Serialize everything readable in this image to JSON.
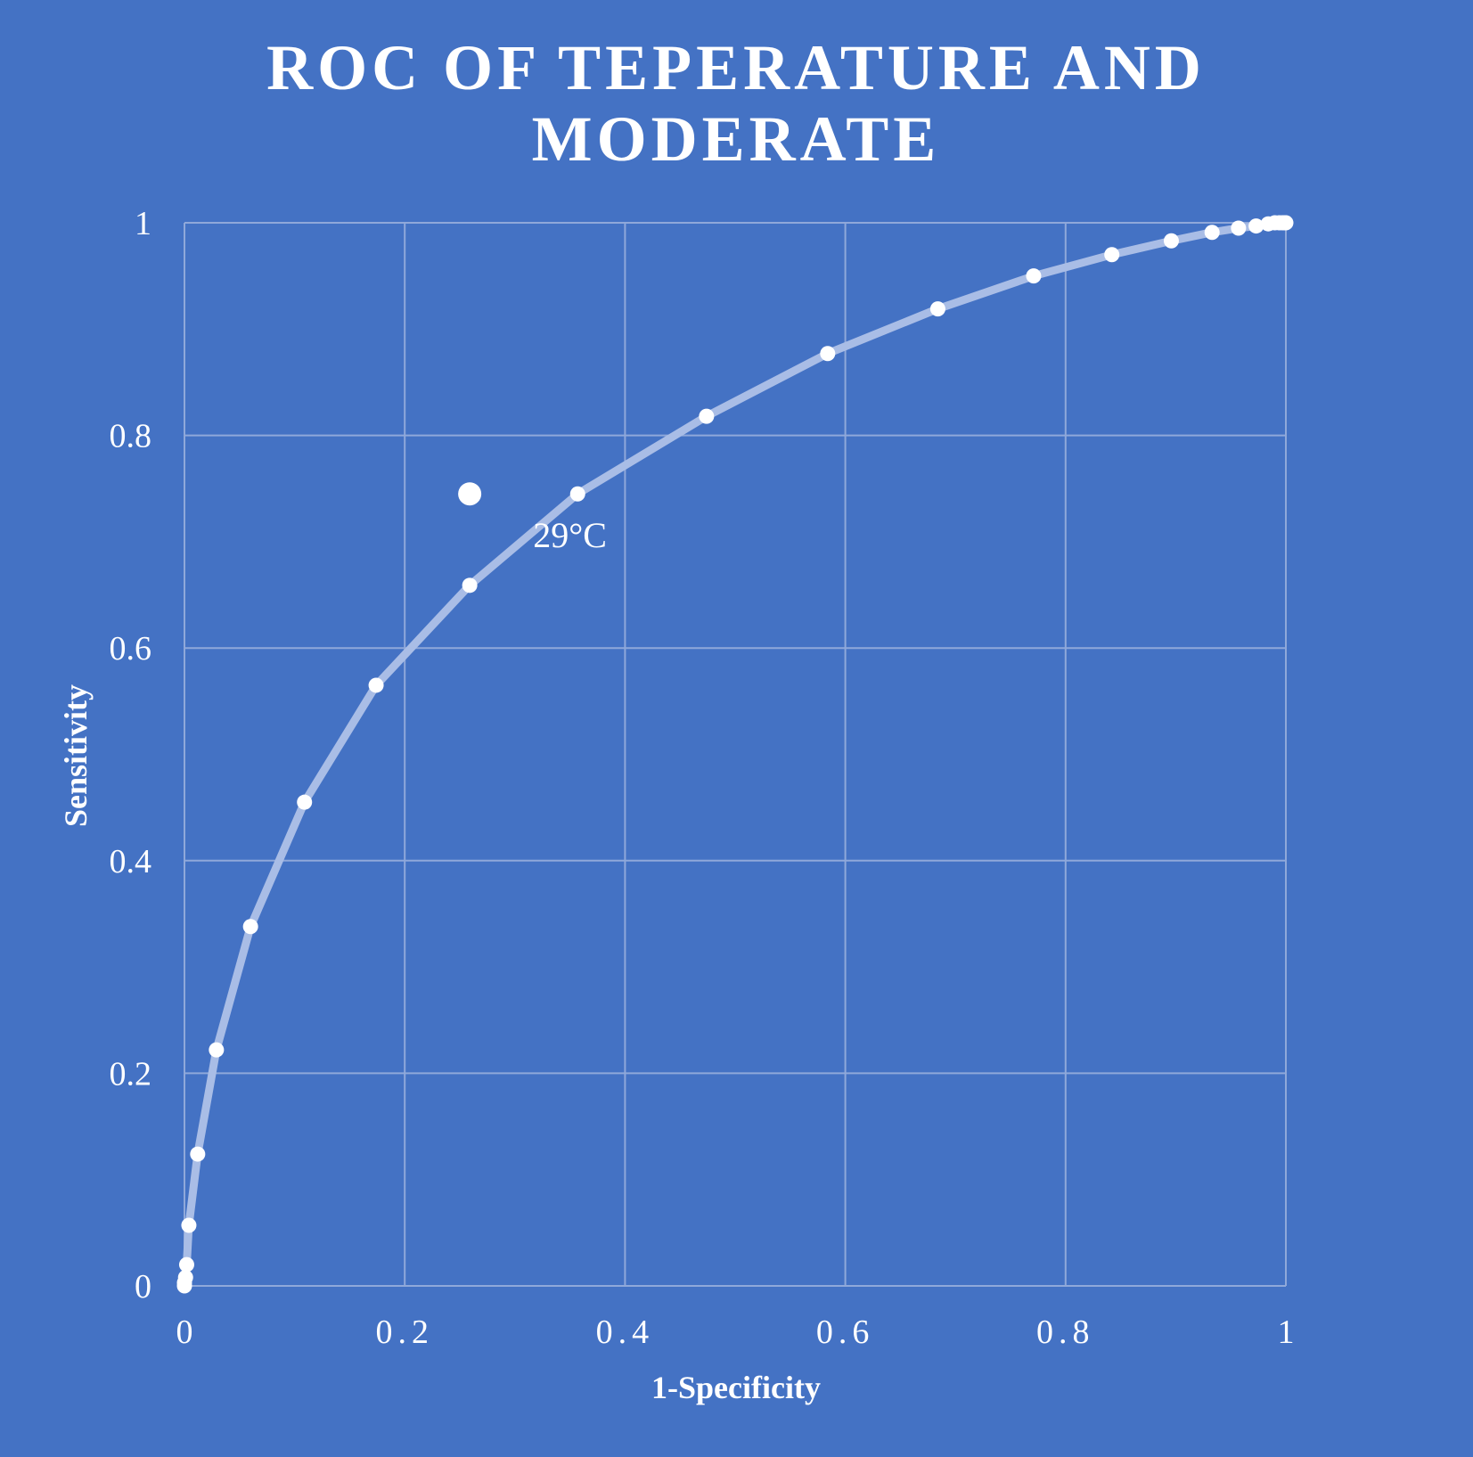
{
  "chart_data": {
    "type": "line",
    "title_lines": [
      "ROC OF TEPERATURE AND",
      "MODERATE"
    ],
    "xlabel": "1-Specificity",
    "ylabel": "Sensitivity",
    "xlim": [
      0,
      1
    ],
    "ylim": [
      0,
      1
    ],
    "xticks": [
      "0",
      "0.2",
      "0.4",
      "0.6",
      "0.8",
      "1"
    ],
    "yticks": [
      "0",
      "0.2",
      "0.4",
      "0.6",
      "0.8",
      "1"
    ],
    "grid": true,
    "legend": "none",
    "colors": {
      "background": "#4472c4",
      "grid": "#8fa8da",
      "line": "#a9bde6",
      "marker": "#ffffff",
      "text": "#ffffff"
    },
    "series": [
      {
        "x": [
          0,
          0,
          0.001,
          0.002,
          0.004,
          0.012,
          0.029,
          0.06,
          0.109,
          0.174,
          0.259,
          0.357,
          0.474,
          0.584,
          0.684,
          0.771,
          0.842,
          0.896,
          0.933,
          0.957,
          0.973,
          0.984,
          0.99,
          0.994,
          0.997,
          0.999,
          1
        ],
        "y": [
          0,
          0.003,
          0.008,
          0.02,
          0.057,
          0.124,
          0.222,
          0.338,
          0.455,
          0.565,
          0.659,
          0.745,
          0.818,
          0.877,
          0.919,
          0.95,
          0.97,
          0.983,
          0.991,
          0.995,
          0.997,
          0.999,
          1,
          1,
          1,
          1,
          1
        ]
      }
    ],
    "highlight": {
      "x": 0.259,
      "y": 0.745
    },
    "annotations": [
      {
        "text": "29°C",
        "x": 0.35,
        "y": 0.695
      }
    ]
  }
}
